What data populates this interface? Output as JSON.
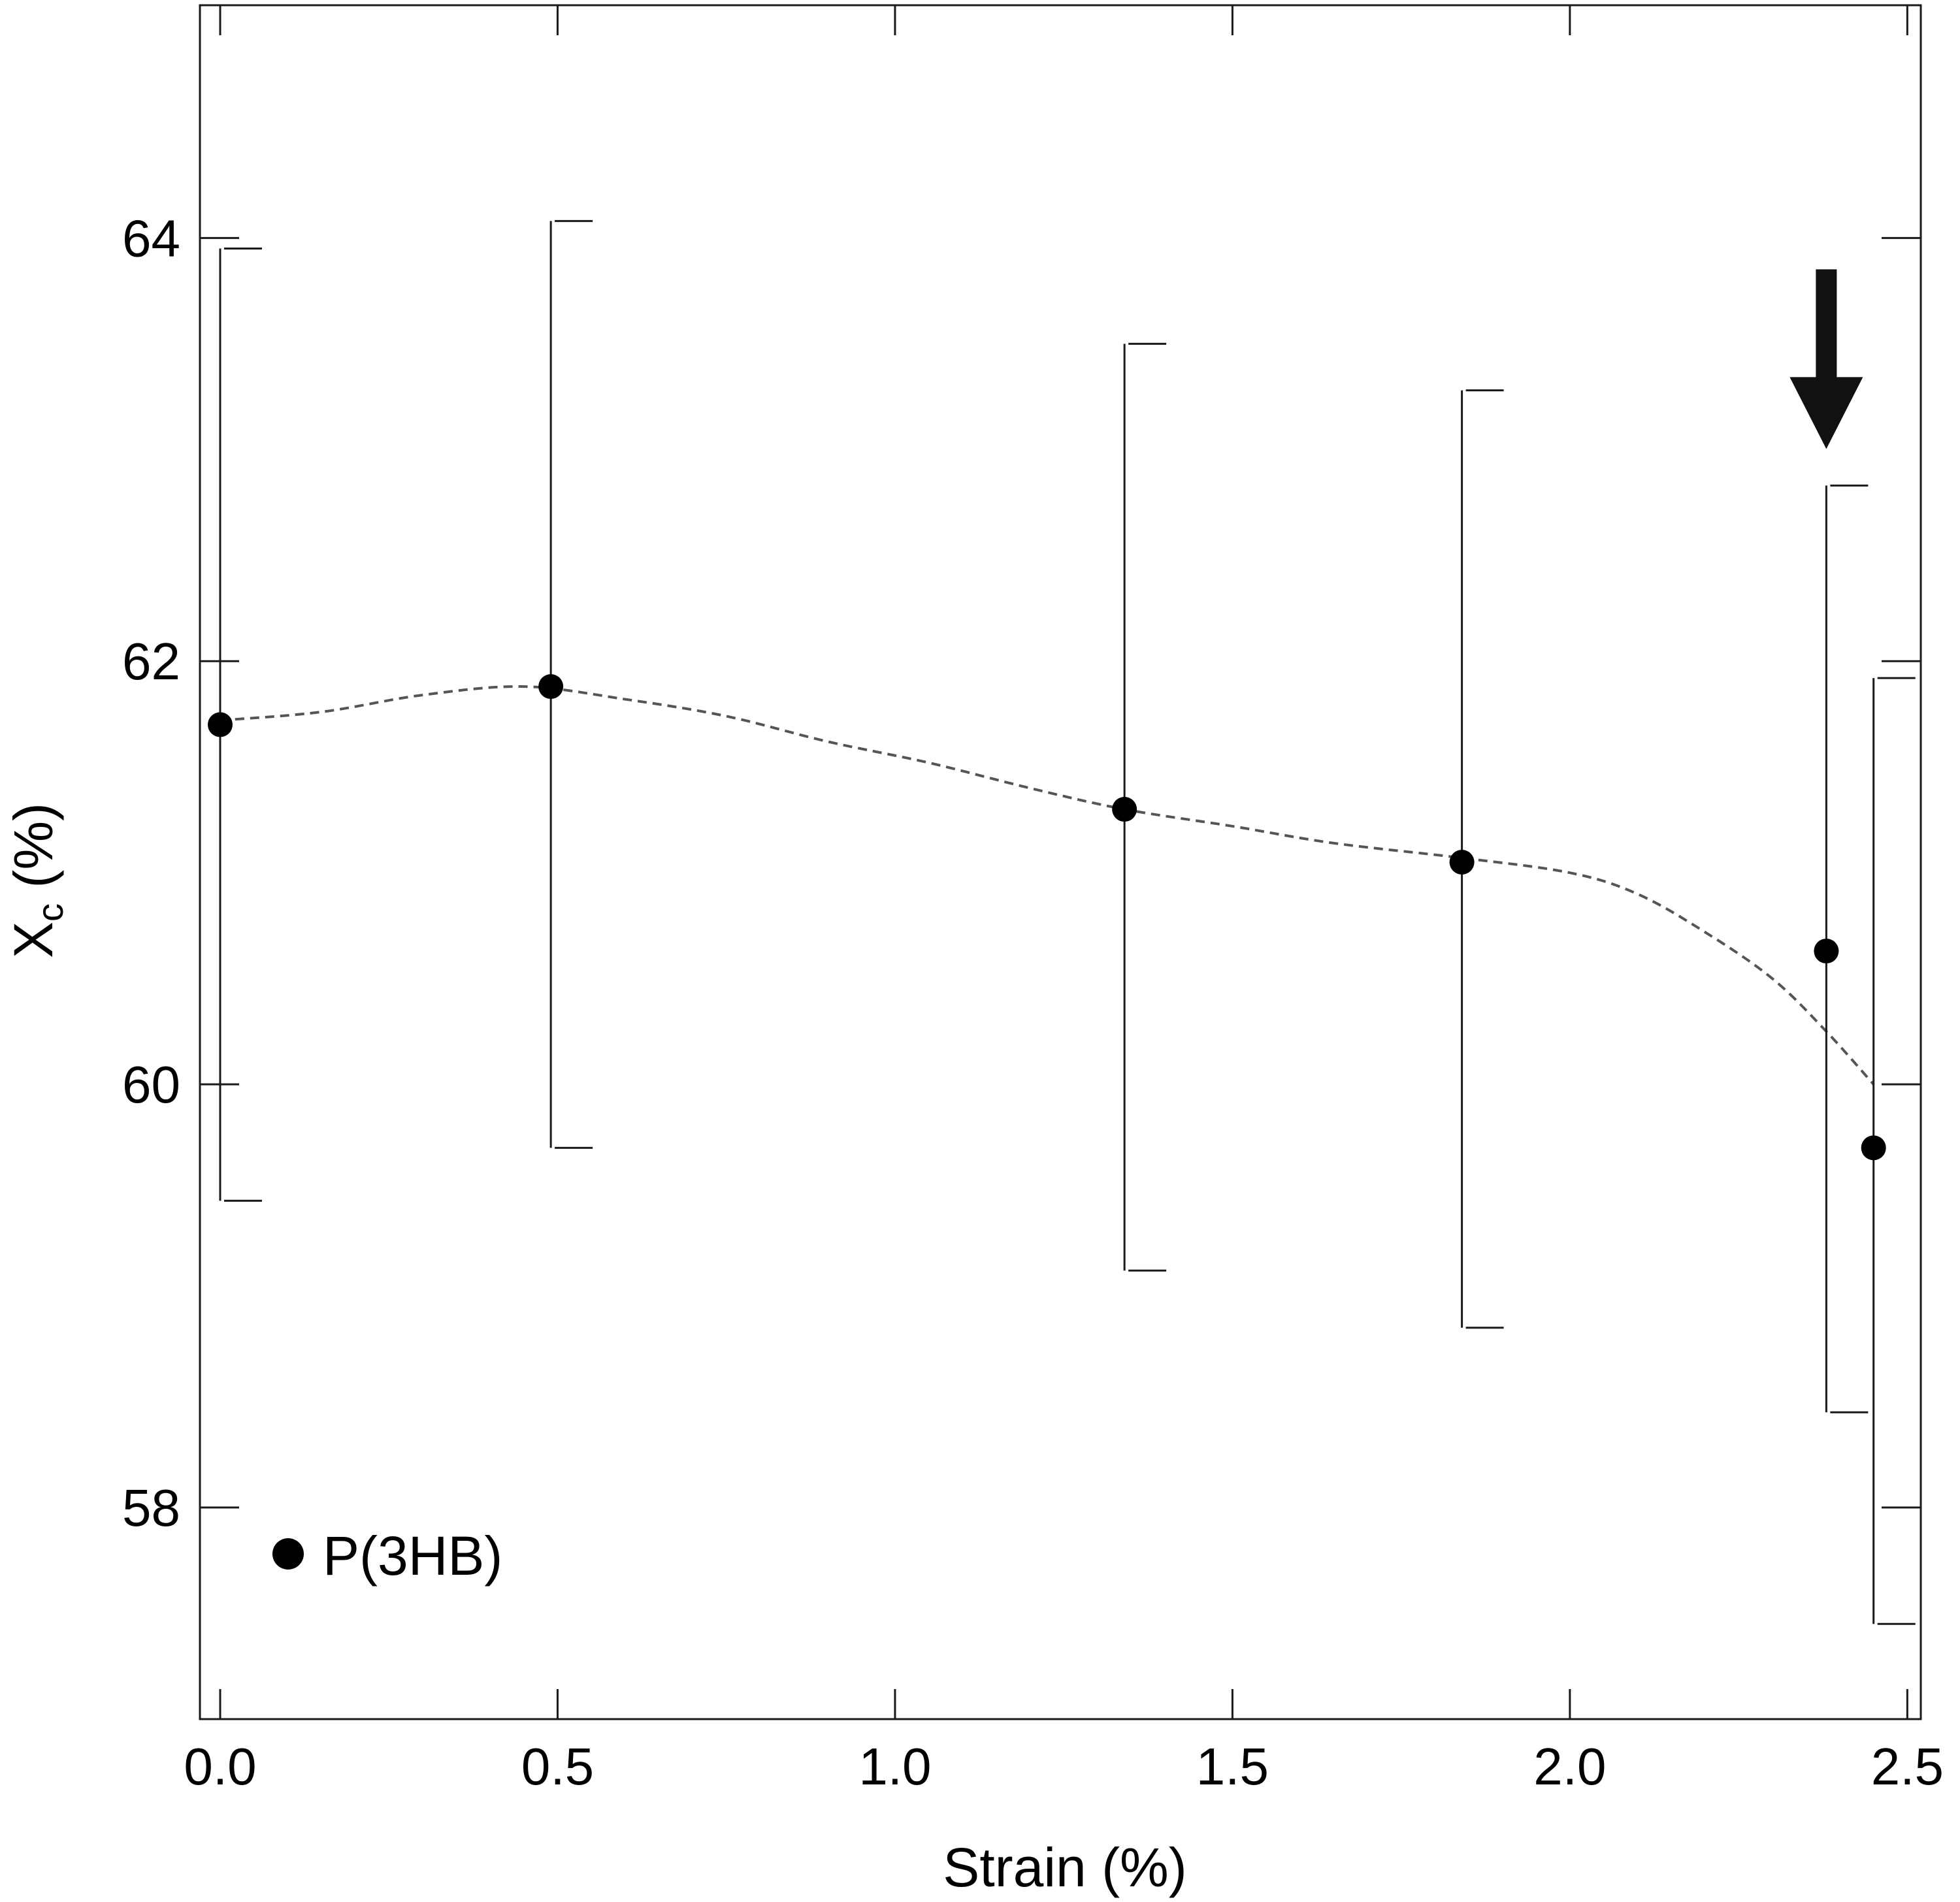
{
  "chart_data": {
    "type": "scatter",
    "title": "",
    "xlabel": "Strain (%)",
    "ylabel": "X",
    "ylabel_subscript": "c",
    "ylabel_suffix": " (%)",
    "xlim": [
      -0.03,
      2.52
    ],
    "ylim": [
      57.0,
      65.1
    ],
    "x_ticks": [
      0.0,
      0.5,
      1.0,
      1.5,
      2.0,
      2.5
    ],
    "x_tick_labels": [
      "0.0",
      "0.5",
      "1.0",
      "1.5",
      "2.0",
      "2.5"
    ],
    "y_ticks": [
      58,
      60,
      62,
      64
    ],
    "y_tick_labels": [
      "58",
      "60",
      "62",
      "64"
    ],
    "grid": false,
    "legend_position": "bottom-left",
    "series": [
      {
        "name": "P(3HB)",
        "color": "#000000",
        "marker": "filled-circle",
        "x": [
          0.0,
          0.49,
          1.34,
          1.84,
          2.38,
          2.45
        ],
        "y": [
          61.7,
          61.88,
          61.3,
          61.05,
          60.63,
          59.7
        ],
        "err_low": [
          59.45,
          59.7,
          59.12,
          58.85,
          58.45,
          57.45
        ],
        "err_high": [
          63.95,
          64.08,
          63.5,
          63.28,
          62.83,
          61.92
        ]
      }
    ],
    "trend_line": {
      "style": "dashed",
      "color": "#555555",
      "x": [
        0.0,
        0.15,
        0.3,
        0.45,
        0.6,
        0.75,
        0.9,
        1.05,
        1.2,
        1.34,
        1.5,
        1.65,
        1.84,
        2.0,
        2.1,
        2.2,
        2.3,
        2.38,
        2.45
      ],
      "y": [
        61.72,
        61.76,
        61.84,
        61.88,
        61.82,
        61.74,
        61.62,
        61.52,
        61.4,
        61.3,
        61.22,
        61.14,
        61.07,
        61.0,
        60.9,
        60.72,
        60.5,
        60.25,
        60.0
      ]
    },
    "annotations": [
      {
        "type": "arrow",
        "direction": "down",
        "target_x": 2.38,
        "description": "marks the point at strain ≈ 2.38"
      }
    ]
  }
}
